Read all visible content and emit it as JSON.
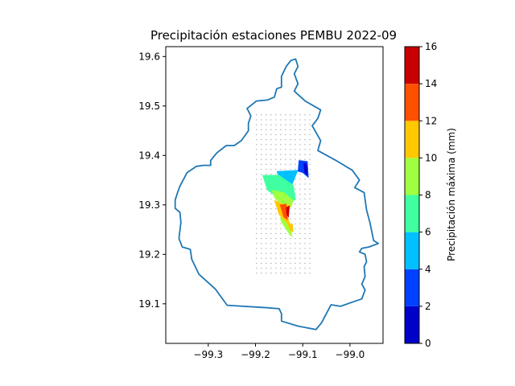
{
  "chart_data": {
    "type": "contour",
    "title": "Precipitación estaciones PEMBU 2022-09",
    "xlabel": "",
    "ylabel": "",
    "xlim": [
      -99.39,
      -98.93
    ],
    "ylim": [
      19.02,
      19.62
    ],
    "x_ticks": [
      "−99.3",
      "−99.2",
      "−99.1",
      "−99.0"
    ],
    "y_ticks": [
      "19.1",
      "19.2",
      "19.3",
      "19.4",
      "19.5",
      "19.6"
    ],
    "x_tick_values": [
      -99.3,
      -99.2,
      -99.1,
      -99.0
    ],
    "y_tick_values": [
      19.1,
      19.2,
      19.3,
      19.4,
      19.5,
      19.6
    ],
    "boundary_color": "#1f77b4",
    "boundary": [
      [
        -99.125,
        19.592
      ],
      [
        -99.115,
        19.595
      ],
      [
        -99.11,
        19.58
      ],
      [
        -99.118,
        19.565
      ],
      [
        -99.11,
        19.545
      ],
      [
        -99.118,
        19.53
      ],
      [
        -99.095,
        19.51
      ],
      [
        -99.062,
        19.492
      ],
      [
        -99.068,
        19.475
      ],
      [
        -99.08,
        19.46
      ],
      [
        -99.062,
        19.43
      ],
      [
        -99.068,
        19.41
      ],
      [
        -99.03,
        19.39
      ],
      [
        -98.995,
        19.37
      ],
      [
        -98.98,
        19.35
      ],
      [
        -98.99,
        19.335
      ],
      [
        -98.97,
        19.325
      ],
      [
        -98.965,
        19.29
      ],
      [
        -98.958,
        19.265
      ],
      [
        -98.95,
        19.228
      ],
      [
        -98.94,
        19.222
      ],
      [
        -98.96,
        19.215
      ],
      [
        -98.975,
        19.212
      ],
      [
        -98.98,
        19.205
      ],
      [
        -98.968,
        19.2
      ],
      [
        -98.965,
        19.185
      ],
      [
        -98.97,
        19.175
      ],
      [
        -98.968,
        19.155
      ],
      [
        -98.975,
        19.14
      ],
      [
        -98.968,
        19.128
      ],
      [
        -98.975,
        19.11
      ],
      [
        -98.99,
        19.105
      ],
      [
        -99.02,
        19.095
      ],
      [
        -99.04,
        19.098
      ],
      [
        -99.06,
        19.062
      ],
      [
        -99.072,
        19.048
      ],
      [
        -99.11,
        19.055
      ],
      [
        -99.145,
        19.065
      ],
      [
        -99.145,
        19.08
      ],
      [
        -99.15,
        19.09
      ],
      [
        -99.175,
        19.092
      ],
      [
        -99.26,
        19.097
      ],
      [
        -99.285,
        19.13
      ],
      [
        -99.32,
        19.16
      ],
      [
        -99.335,
        19.19
      ],
      [
        -99.338,
        19.21
      ],
      [
        -99.345,
        19.212
      ],
      [
        -99.355,
        19.215
      ],
      [
        -99.362,
        19.232
      ],
      [
        -99.358,
        19.265
      ],
      [
        -99.36,
        19.285
      ],
      [
        -99.37,
        19.293
      ],
      [
        -99.37,
        19.31
      ],
      [
        -99.365,
        19.325
      ],
      [
        -99.36,
        19.338
      ],
      [
        -99.345,
        19.365
      ],
      [
        -99.325,
        19.378
      ],
      [
        -99.31,
        19.38
      ],
      [
        -99.295,
        19.38
      ],
      [
        -99.295,
        19.39
      ],
      [
        -99.282,
        19.405
      ],
      [
        -99.262,
        19.42
      ],
      [
        -99.245,
        19.42
      ],
      [
        -99.23,
        19.43
      ],
      [
        -99.215,
        19.45
      ],
      [
        -99.215,
        19.465
      ],
      [
        -99.21,
        19.48
      ],
      [
        -99.215,
        19.49
      ],
      [
        -99.218,
        19.495
      ],
      [
        -99.198,
        19.51
      ],
      [
        -99.175,
        19.512
      ],
      [
        -99.16,
        19.518
      ],
      [
        -99.155,
        19.535
      ],
      [
        -99.145,
        19.538
      ],
      [
        -99.145,
        19.56
      ],
      [
        -99.135,
        19.58
      ],
      [
        -99.125,
        19.592
      ]
    ],
    "station_grid": {
      "lon_start": -99.198,
      "lon_end": -99.085,
      "lon_count": 12,
      "lat_start": 19.162,
      "lat_end": 19.482,
      "lat_count": 33,
      "color": "#aaaaaa"
    },
    "filled_regions": [
      {
        "level": "4-6",
        "color": "#00c0ff",
        "polygon": [
          [
            -99.155,
            19.368
          ],
          [
            -99.11,
            19.37
          ],
          [
            -99.125,
            19.335
          ],
          [
            -99.15,
            19.355
          ]
        ]
      },
      {
        "level": "6-8",
        "color": "#40ffa0",
        "polygon": [
          [
            -99.185,
            19.36
          ],
          [
            -99.15,
            19.36
          ],
          [
            -99.12,
            19.34
          ],
          [
            -99.115,
            19.31
          ],
          [
            -99.14,
            19.305
          ],
          [
            -99.175,
            19.33
          ]
        ]
      },
      {
        "level": "8-10",
        "color": "#a0ff40",
        "polygon": [
          [
            -99.165,
            19.33
          ],
          [
            -99.14,
            19.325
          ],
          [
            -99.12,
            19.31
          ],
          [
            -99.125,
            19.295
          ],
          [
            -99.145,
            19.3
          ],
          [
            -99.16,
            19.315
          ]
        ]
      },
      {
        "level": "8-10",
        "color": "#a0ff40",
        "polygon": [
          [
            -99.148,
            19.275
          ],
          [
            -99.13,
            19.27
          ],
          [
            -99.122,
            19.235
          ],
          [
            -99.128,
            19.24
          ],
          [
            -99.145,
            19.265
          ]
        ]
      },
      {
        "level": "10-12",
        "color": "#ffc800",
        "polygon": [
          [
            -99.16,
            19.31
          ],
          [
            -99.14,
            19.3
          ],
          [
            -99.125,
            19.3
          ],
          [
            -99.135,
            19.285
          ],
          [
            -99.125,
            19.255
          ],
          [
            -99.15,
            19.28
          ]
        ]
      },
      {
        "level": "10-12",
        "color": "#ffc800",
        "polygon": [
          [
            -99.132,
            19.262
          ],
          [
            -99.122,
            19.262
          ],
          [
            -99.12,
            19.245
          ],
          [
            -99.126,
            19.248
          ]
        ]
      },
      {
        "level": "12-14",
        "color": "#ff5000",
        "polygon": [
          [
            -99.148,
            19.3
          ],
          [
            -99.135,
            19.302
          ],
          [
            -99.132,
            19.27
          ],
          [
            -99.14,
            19.275
          ]
        ]
      },
      {
        "level": "14-16",
        "color": "#c80000",
        "polygon": [
          [
            -99.135,
            19.295
          ],
          [
            -99.128,
            19.298
          ],
          [
            -99.13,
            19.275
          ],
          [
            -99.134,
            19.28
          ]
        ]
      },
      {
        "level": "2-4",
        "color": "#0040ff",
        "polygon": [
          [
            -99.108,
            19.39
          ],
          [
            -99.09,
            19.388
          ],
          [
            -99.088,
            19.355
          ],
          [
            -99.1,
            19.365
          ],
          [
            -99.11,
            19.368
          ]
        ]
      },
      {
        "level": "0-2",
        "color": "#0000c8",
        "polygon": [
          [
            -99.098,
            19.385
          ],
          [
            -99.092,
            19.383
          ],
          [
            -99.09,
            19.36
          ],
          [
            -99.096,
            19.365
          ]
        ]
      }
    ],
    "colorbar": {
      "label": "Precipitación máxima (mm)",
      "range": [
        0,
        16
      ],
      "ticks": [
        "0",
        "2",
        "4",
        "6",
        "8",
        "10",
        "12",
        "14",
        "16"
      ],
      "levels": [
        {
          "from": 0,
          "to": 2,
          "color": "#0000c8"
        },
        {
          "from": 2,
          "to": 4,
          "color": "#0040ff"
        },
        {
          "from": 4,
          "to": 6,
          "color": "#00c0ff"
        },
        {
          "from": 6,
          "to": 8,
          "color": "#40ffa0"
        },
        {
          "from": 8,
          "to": 10,
          "color": "#a0ff40"
        },
        {
          "from": 10,
          "to": 12,
          "color": "#ffc800"
        },
        {
          "from": 12,
          "to": 14,
          "color": "#ff5000"
        },
        {
          "from": 14,
          "to": 16,
          "color": "#c80000"
        }
      ]
    }
  }
}
